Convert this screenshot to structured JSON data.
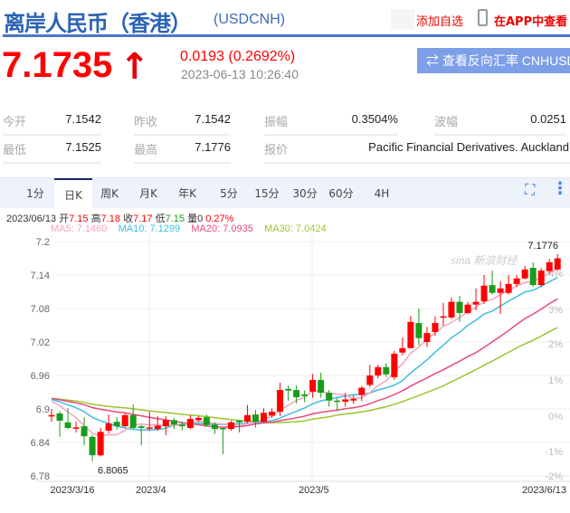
{
  "header": {
    "title": "离岸人民币（香港）",
    "symbol": "(USDCNH)",
    "add_favorite": "添加自选",
    "phone_icon": "phone-icon",
    "view_in_app": "在APP中查看"
  },
  "quote": {
    "price": "7.1735",
    "direction_icon": "arrow-up",
    "change": "0.0193 (0.2692%)",
    "timestamp": "2023-06-13 10:26:40",
    "reverse_button": "⇄ 查看反向汇率 CNHUSD",
    "color_up": "#ff0000",
    "color_down": "#1a9c1a"
  },
  "stats": [
    {
      "label": "今开",
      "value": "7.1542"
    },
    {
      "label": "昨收",
      "value": "7.1542"
    },
    {
      "label": "振幅",
      "value": "0.3504%"
    },
    {
      "label": "波幅",
      "value": "0.0251"
    },
    {
      "label": "最低",
      "value": "7.1525"
    },
    {
      "label": "最高",
      "value": "7.1776"
    },
    {
      "label": "报价",
      "value": "Pacific Financial Derivatives. Auckland"
    }
  ],
  "tabs": [
    {
      "label": "1分"
    },
    {
      "label": "日K",
      "active": true
    },
    {
      "label": "周K"
    },
    {
      "label": "月K"
    },
    {
      "label": "年K"
    },
    {
      "label": "5分"
    },
    {
      "label": "15分"
    },
    {
      "label": "30分"
    },
    {
      "label": "60分"
    },
    {
      "label": "4H"
    }
  ],
  "toolbar": {
    "fullscreen_icon": "fullscreen-icon",
    "more_icon": "more-vertical-icon"
  },
  "info": {
    "date": "2023/06/13",
    "open_label": "开",
    "open": "7.15",
    "high_label": "高",
    "high": "7.18",
    "close_label": "收",
    "close": "7.17",
    "low_label": "低",
    "low": "7.15",
    "volume_label": "量",
    "volume": "0",
    "change_pct": "0.27%"
  },
  "ma": {
    "ma5": "MA5: 7.1460",
    "ma10": "MA10: 7.1299",
    "ma20": "MA20: 7.0935",
    "ma30": "MA30: 7.0424",
    "colors": {
      "ma5": "#f4a3bd",
      "ma10": "#3cbfe0",
      "ma20": "#e84a7c",
      "ma30": "#9cc42e"
    }
  },
  "watermark": "sina 新浪财经",
  "chart_data": {
    "type": "candlestick",
    "ylim": [
      6.78,
      7.2
    ],
    "y_ticks": [
      "7.2",
      "7.14",
      "7.08",
      "7.02",
      "6.96",
      "6.9",
      "6.84",
      "6.78"
    ],
    "pct_ticks": [
      "4%",
      "3%",
      "2%",
      "1%",
      "0%",
      "-1%",
      "-2%"
    ],
    "x_labels": [
      {
        "label": "2023/3/16",
        "index": 2
      },
      {
        "label": "2023/4",
        "index": 12
      },
      {
        "label": "2023/5",
        "index": 32
      },
      {
        "label": "2023/6/13",
        "index": 62
      }
    ],
    "max_label": "7.1776",
    "min_label": "6.8065",
    "grid": true,
    "ohlc": [
      [
        6.887,
        6.889,
        6.9,
        6.877
      ],
      [
        6.892,
        6.879,
        6.896,
        6.85
      ],
      [
        6.876,
        6.866,
        6.902,
        6.864
      ],
      [
        6.865,
        6.867,
        6.877,
        6.858
      ],
      [
        6.869,
        6.851,
        6.885,
        6.835
      ],
      [
        6.85,
        6.817,
        6.853,
        6.8065
      ],
      [
        6.817,
        6.859,
        6.866,
        6.815
      ],
      [
        6.861,
        6.874,
        6.89,
        6.856
      ],
      [
        6.877,
        6.869,
        6.885,
        6.863
      ],
      [
        6.869,
        6.889,
        6.892,
        6.867
      ],
      [
        6.889,
        6.866,
        6.908,
        6.864
      ],
      [
        6.869,
        6.866,
        6.871,
        6.835
      ],
      [
        6.865,
        6.867,
        6.895,
        6.861
      ],
      [
        6.864,
        6.87,
        6.887,
        6.861
      ],
      [
        6.869,
        6.88,
        6.887,
        6.853
      ],
      [
        6.88,
        6.872,
        6.884,
        6.864
      ],
      [
        6.872,
        6.869,
        6.877,
        6.862
      ],
      [
        6.866,
        6.882,
        6.889,
        6.864
      ],
      [
        6.88,
        6.884,
        6.887,
        6.877
      ],
      [
        6.885,
        6.871,
        6.89,
        6.868
      ],
      [
        6.872,
        6.864,
        6.876,
        6.855
      ],
      [
        6.866,
        6.864,
        6.866,
        6.819
      ],
      [
        6.864,
        6.876,
        6.879,
        6.861
      ],
      [
        6.879,
        6.876,
        6.88,
        6.858
      ],
      [
        6.877,
        6.889,
        6.907,
        6.874
      ],
      [
        6.89,
        6.877,
        6.898,
        6.867
      ],
      [
        6.877,
        6.893,
        6.901,
        6.876
      ],
      [
        6.888,
        6.895,
        6.901,
        6.885
      ],
      [
        6.895,
        6.934,
        6.947,
        6.888
      ],
      [
        6.936,
        6.933,
        6.942,
        6.915
      ],
      [
        6.934,
        6.921,
        6.942,
        6.91
      ],
      [
        6.926,
        6.923,
        6.933,
        6.912
      ],
      [
        6.931,
        6.952,
        6.963,
        6.92
      ],
      [
        6.952,
        6.929,
        6.965,
        6.92
      ],
      [
        6.929,
        6.915,
        6.934,
        6.904
      ],
      [
        6.915,
        6.913,
        6.92,
        6.896
      ],
      [
        6.913,
        6.917,
        6.929,
        6.904
      ],
      [
        6.915,
        6.918,
        6.925,
        6.909
      ],
      [
        6.925,
        6.938,
        6.941,
        6.914
      ],
      [
        6.943,
        6.96,
        6.979,
        6.939
      ],
      [
        6.96,
        6.975,
        6.979,
        6.955
      ],
      [
        6.975,
        6.962,
        6.982,
        6.957
      ],
      [
        6.957,
        6.999,
        7.004,
        6.952
      ],
      [
        7.001,
        7.009,
        7.028,
        6.996
      ],
      [
        7.009,
        7.056,
        7.067,
        7.009
      ],
      [
        7.054,
        7.027,
        7.08,
        7.014
      ],
      [
        7.02,
        7.036,
        7.047,
        7.011
      ],
      [
        7.038,
        7.054,
        7.066,
        7.031
      ],
      [
        7.064,
        7.066,
        7.09,
        7.049
      ],
      [
        7.064,
        7.092,
        7.1,
        7.061
      ],
      [
        7.092,
        7.072,
        7.103,
        7.056
      ],
      [
        7.072,
        7.087,
        7.092,
        7.07
      ],
      [
        7.087,
        7.092,
        7.116,
        7.077
      ],
      [
        7.093,
        7.121,
        7.14,
        7.088
      ],
      [
        7.122,
        7.108,
        7.148,
        7.105
      ],
      [
        7.108,
        7.116,
        7.129,
        7.07
      ],
      [
        7.108,
        7.124,
        7.14,
        7.105
      ],
      [
        7.124,
        7.134,
        7.14,
        7.119
      ],
      [
        7.134,
        7.15,
        7.156,
        7.132
      ],
      [
        7.153,
        7.122,
        7.163,
        7.119
      ],
      [
        7.122,
        7.148,
        7.153,
        7.119
      ],
      [
        7.147,
        7.163,
        7.169,
        7.143
      ],
      [
        7.15,
        7.17,
        7.1776,
        7.148
      ]
    ]
  }
}
